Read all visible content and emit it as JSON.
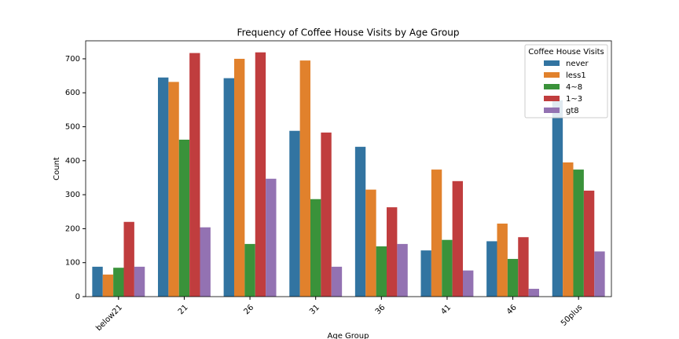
{
  "chart_data": {
    "type": "bar",
    "title": "Frequency of Coffee House Visits by Age Group",
    "x_label": "Age Group",
    "y_label": "Count",
    "categories": [
      "below21",
      "21",
      "26",
      "31",
      "36",
      "41",
      "46",
      "50plus"
    ],
    "series": [
      {
        "name": "never",
        "color": "#3274a1",
        "values": [
          88,
          645,
          643,
          488,
          441,
          136,
          163,
          578
        ]
      },
      {
        "name": "less1",
        "color": "#e1812c",
        "values": [
          65,
          632,
          700,
          695,
          315,
          374,
          215,
          395
        ]
      },
      {
        "name": "4~8",
        "color": "#3a923a",
        "values": [
          85,
          462,
          155,
          287,
          148,
          167,
          111,
          374
        ]
      },
      {
        "name": "1~3",
        "color": "#c03d3e",
        "values": [
          220,
          717,
          719,
          483,
          263,
          340,
          175,
          312
        ]
      },
      {
        "name": "gt8",
        "color": "#9372b2",
        "values": [
          88,
          204,
          347,
          88,
          155,
          77,
          23,
          133
        ]
      }
    ],
    "legend_title": "Coffee House Visits",
    "legend_position": "upper right",
    "ylim": [
      0,
      753
    ],
    "yticks": [
      0,
      100,
      200,
      300,
      400,
      500,
      600,
      700
    ]
  }
}
